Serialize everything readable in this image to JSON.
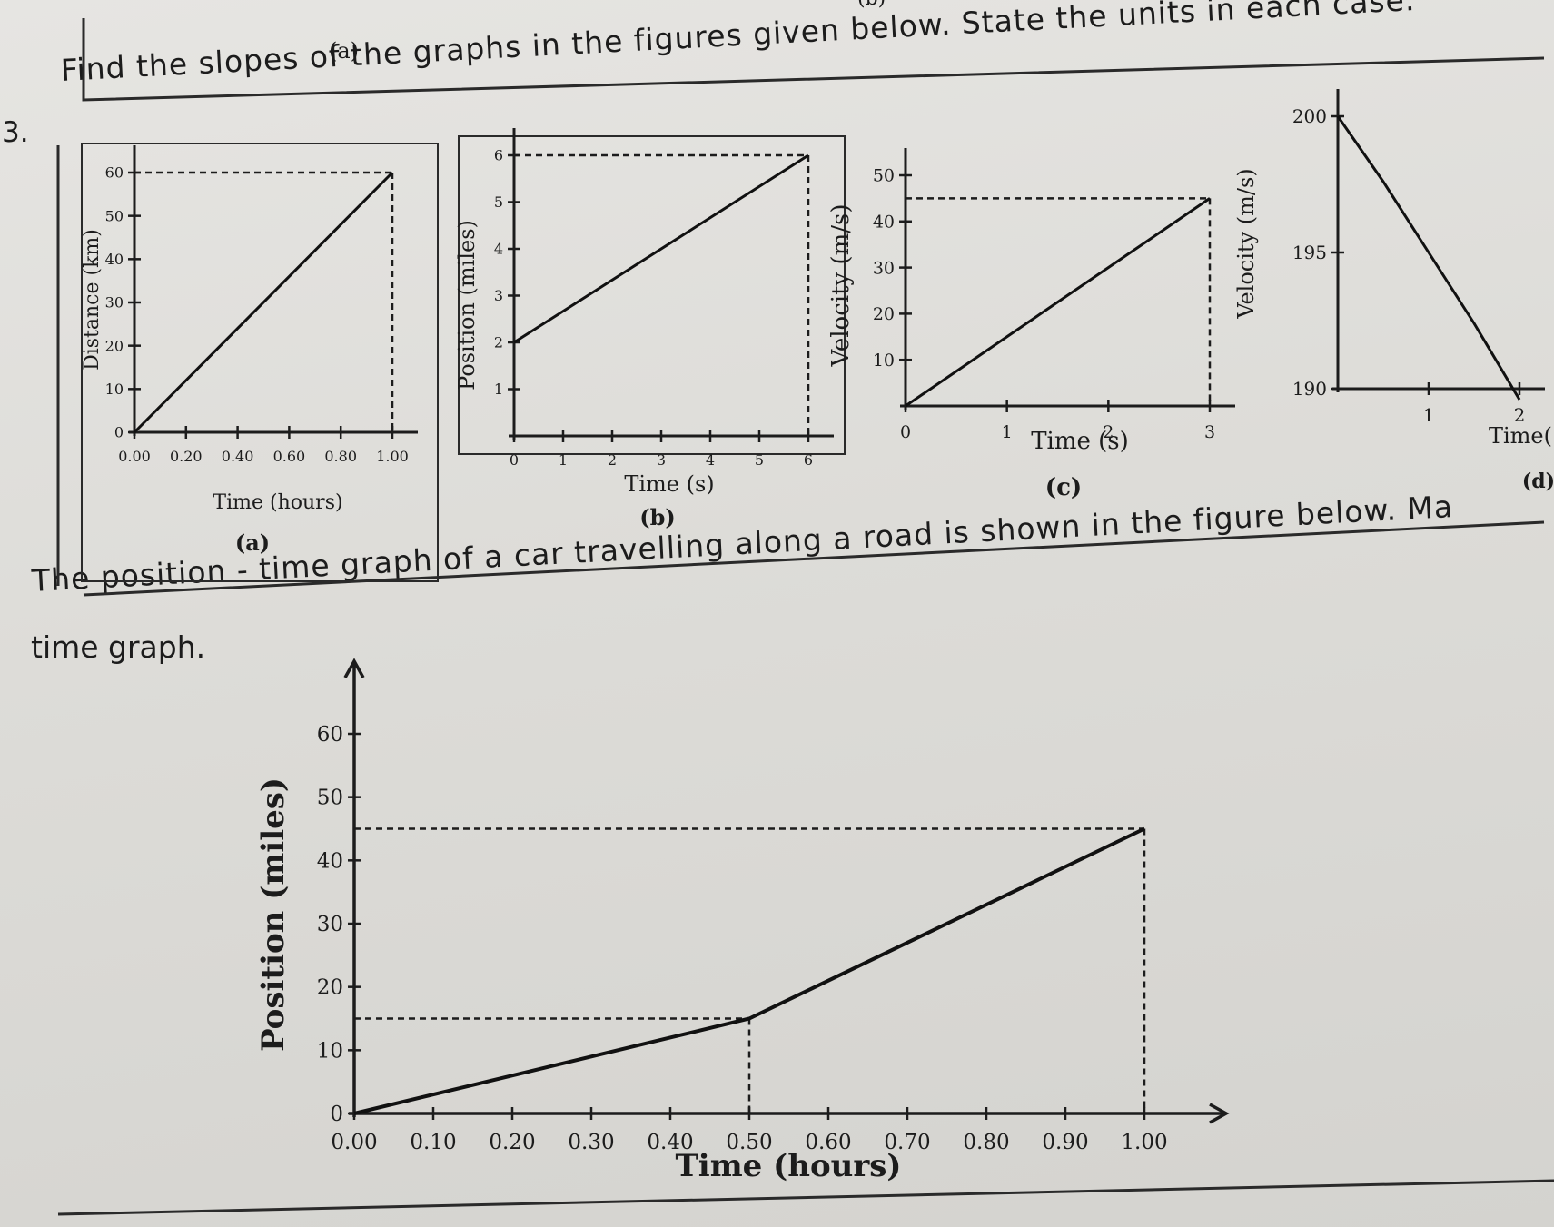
{
  "question": {
    "number": "3.",
    "text": "Find the slopes of the graphs in the figures given below. State the units in each case."
  },
  "next_question": {
    "text": "The position - time graph of a car travelling along a road is shown in the figure below. Ma",
    "text_line2": "time graph."
  },
  "previous": {
    "label_a": "(a)",
    "label_b": "(b)"
  },
  "chart_data": [
    {
      "type": "line",
      "panel_label": "(a)",
      "xlabel": "Time (hours)",
      "ylabel": "Distance (km)",
      "xlim": [
        0,
        1.0
      ],
      "ylim": [
        0,
        60
      ],
      "x_ticks": [
        "0.00",
        "0.20",
        "0.40",
        "0.60",
        "0.80",
        "1.00"
      ],
      "y_ticks": [
        "0",
        "10",
        "20",
        "30",
        "40",
        "50",
        "60"
      ],
      "series": [
        {
          "x": [
            0,
            1.0
          ],
          "y": [
            0,
            60
          ]
        }
      ],
      "guides": "dashed lines at y=60 and x=1.00"
    },
    {
      "type": "line",
      "panel_label": "(b)",
      "xlabel": "Time (s)",
      "ylabel": "Position (miles)",
      "xlim": [
        0,
        6
      ],
      "ylim": [
        0,
        6
      ],
      "x_ticks": [
        "0",
        "1",
        "2",
        "3",
        "4",
        "5",
        "6"
      ],
      "y_ticks": [
        "1",
        "2",
        "3",
        "4",
        "5",
        "6"
      ],
      "series": [
        {
          "x": [
            0,
            6
          ],
          "y": [
            2,
            6
          ]
        }
      ],
      "guides": "dashed lines at y=6 and x=6"
    },
    {
      "type": "line",
      "panel_label": "(c)",
      "xlabel": "Time (s)",
      "ylabel": "Velocity (m/s)",
      "xlim": [
        0,
        3
      ],
      "ylim": [
        0,
        50
      ],
      "x_ticks": [
        "0",
        "1",
        "2",
        "3"
      ],
      "y_ticks": [
        "10",
        "20",
        "30",
        "40",
        "50"
      ],
      "series": [
        {
          "x": [
            0,
            3
          ],
          "y": [
            0,
            45
          ]
        }
      ],
      "guides": "dashed lines at y=45 and x=3"
    },
    {
      "type": "line",
      "panel_label": "(d)",
      "xlabel": "Time(",
      "ylabel": "Velocity (m/s)",
      "xlim": [
        0,
        2
      ],
      "ylim": [
        190,
        200
      ],
      "x_ticks": [
        "1",
        "2"
      ],
      "y_ticks": [
        "190",
        "195",
        "200"
      ],
      "series": [
        {
          "x": [
            0,
            0.5,
            1.0,
            1.5,
            2.0
          ],
          "y": [
            200,
            197.6,
            195.0,
            192.4,
            189.6
          ]
        }
      ],
      "note": "panel cut off at right edge"
    },
    {
      "type": "line",
      "xlabel": "Time (hours)",
      "ylabel": "Position (miles)",
      "xlim": [
        0,
        1.0
      ],
      "ylim": [
        0,
        60
      ],
      "x_ticks": [
        "0.00",
        "0.10",
        "0.20",
        "0.30",
        "0.40",
        "0.50",
        "0.60",
        "0.70",
        "0.80",
        "0.90",
        "1.00"
      ],
      "y_ticks": [
        "0",
        "10",
        "20",
        "30",
        "40",
        "50",
        "60"
      ],
      "series": [
        {
          "x": [
            0,
            0.5,
            1.0
          ],
          "y": [
            0,
            15,
            45
          ]
        }
      ],
      "guides": "dashed lines at y=15, y=45, x=0.50, x=1.00"
    }
  ]
}
